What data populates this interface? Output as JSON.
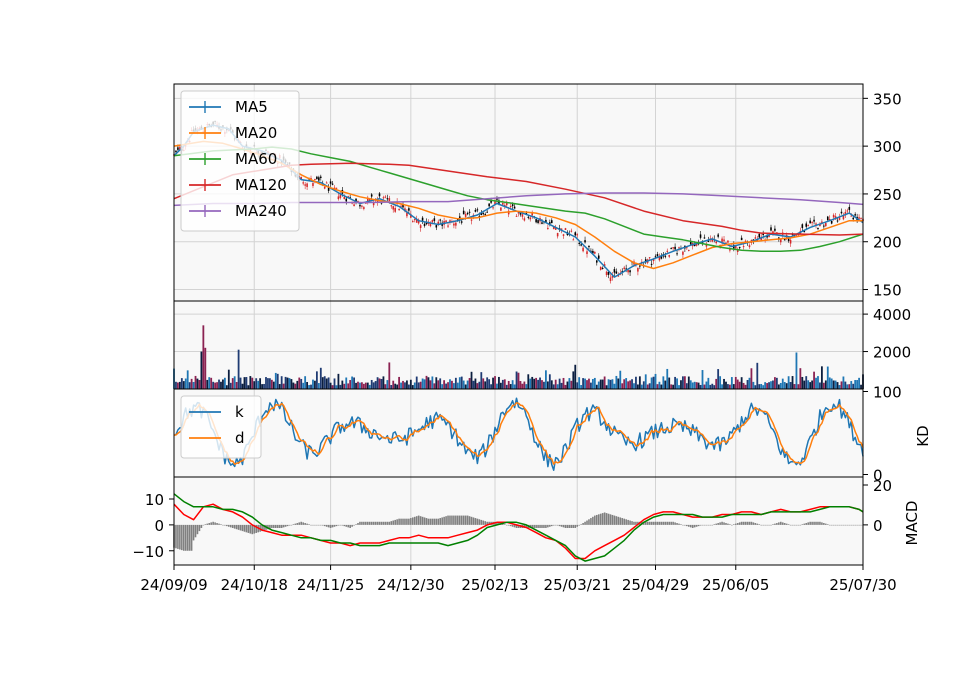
{
  "chart_data": [
    {
      "panel": "price",
      "type": "candlestick",
      "ylim": [
        138,
        365
      ],
      "yticks": [
        150,
        200,
        250,
        300,
        350
      ],
      "grid": true,
      "legend_position": "top-left",
      "series": [
        {
          "name": "MA5",
          "color": "#1f77b4",
          "x": [
            0,
            5,
            10,
            20,
            28,
            35,
            45,
            55,
            65,
            75,
            85,
            95,
            105,
            115,
            125,
            135,
            145,
            155,
            165,
            175,
            185,
            195,
            205,
            215,
            225,
            235,
            245,
            255,
            265,
            275,
            285,
            295,
            305,
            315,
            325,
            335,
            345,
            352
          ],
          "y": [
            290,
            300,
            315,
            322,
            318,
            300,
            295,
            285,
            265,
            262,
            250,
            240,
            245,
            237,
            222,
            218,
            222,
            228,
            240,
            232,
            225,
            215,
            205,
            185,
            163,
            175,
            182,
            190,
            197,
            203,
            195,
            200,
            208,
            205,
            215,
            222,
            230,
            220
          ]
        },
        {
          "name": "MA20",
          "color": "#ff7f0e",
          "x": [
            0,
            15,
            25,
            35,
            45,
            55,
            65,
            75,
            85,
            95,
            105,
            115,
            125,
            135,
            145,
            155,
            165,
            175,
            185,
            195,
            205,
            215,
            225,
            235,
            245,
            255,
            265,
            275,
            285,
            295,
            305,
            315,
            325,
            335,
            345,
            352
          ],
          "y": [
            300,
            305,
            303,
            297,
            290,
            282,
            270,
            260,
            253,
            247,
            243,
            240,
            235,
            228,
            224,
            225,
            230,
            232,
            230,
            225,
            218,
            205,
            190,
            178,
            172,
            178,
            186,
            194,
            198,
            200,
            202,
            204,
            208,
            215,
            222,
            222
          ]
        },
        {
          "name": "MA60",
          "color": "#2ca02c",
          "x": [
            0,
            20,
            40,
            50,
            60,
            70,
            80,
            90,
            100,
            110,
            120,
            130,
            140,
            150,
            160,
            170,
            180,
            190,
            200,
            210,
            220,
            230,
            240,
            250,
            260,
            270,
            280,
            290,
            300,
            310,
            320,
            330,
            340,
            352
          ],
          "y": [
            290,
            295,
            297,
            299,
            297,
            292,
            288,
            284,
            278,
            272,
            266,
            260,
            254,
            248,
            244,
            241,
            238,
            235,
            232,
            230,
            224,
            216,
            208,
            205,
            202,
            198,
            194,
            191,
            190,
            190,
            191,
            195,
            200,
            208
          ]
        },
        {
          "name": "MA120",
          "color": "#d62728",
          "x": [
            0,
            30,
            45,
            60,
            70,
            90,
            110,
            120,
            140,
            160,
            180,
            200,
            220,
            240,
            260,
            280,
            290,
            300,
            320,
            340,
            352
          ],
          "y": [
            245,
            270,
            275,
            280,
            281,
            282,
            281,
            280,
            274,
            268,
            263,
            255,
            246,
            232,
            222,
            216,
            212,
            209,
            208,
            207,
            208
          ]
        },
        {
          "name": "MA240",
          "color": "#9467bd",
          "x": [
            0,
            20,
            40,
            60,
            80,
            100,
            120,
            140,
            160,
            180,
            200,
            220,
            240,
            260,
            280,
            300,
            320,
            340,
            352
          ],
          "y": [
            238,
            240,
            240,
            241,
            241,
            241,
            242,
            242,
            245,
            248,
            250,
            251,
            251,
            250,
            248,
            246,
            244,
            241,
            239
          ]
        }
      ]
    },
    {
      "panel": "volume",
      "type": "bar",
      "ylim": [
        0,
        4700
      ],
      "yticks": [
        2000,
        4000
      ],
      "tick_labels": [
        "2000",
        "4000"
      ],
      "grid": true,
      "spikes": [
        {
          "x": 14,
          "value": 2000
        },
        {
          "x": 15,
          "value": 3400
        },
        {
          "x": 16,
          "value": 2200
        },
        {
          "x": 33,
          "value": 2100
        },
        {
          "x": 157,
          "value": 900
        },
        {
          "x": 318,
          "value": 1950
        },
        {
          "x": 334,
          "value": 1200
        }
      ]
    },
    {
      "panel": "kd",
      "type": "line",
      "ylabel": "KD",
      "ylim": [
        -3,
        103
      ],
      "yticks": [
        0,
        100
      ],
      "legend_position": "top-left",
      "series": [
        {
          "name": "k",
          "color": "#1f77b4"
        },
        {
          "name": "d",
          "color": "#ff7f0e"
        }
      ]
    },
    {
      "panel": "macd",
      "type": "line",
      "ylabel": "MACD",
      "ylim": [
        -15.5,
        18.5
      ],
      "yticks_left": [
        -10,
        0,
        10
      ],
      "yticks_right": [
        0,
        20
      ],
      "series": [
        {
          "color": "#ff0000",
          "x": [
            0,
            5,
            10,
            15,
            20,
            25,
            30,
            35,
            40,
            45,
            50,
            55,
            60,
            65,
            70,
            75,
            80,
            85,
            90,
            95,
            100,
            105,
            110,
            115,
            120,
            125,
            130,
            135,
            140,
            145,
            150,
            155,
            160,
            165,
            170,
            175,
            180,
            185,
            190,
            195,
            200,
            205,
            210,
            215,
            220,
            225,
            230,
            235,
            240,
            245,
            250,
            255,
            260,
            265,
            270,
            275,
            280,
            285,
            290,
            295,
            300,
            305,
            310,
            315,
            320,
            325,
            330,
            335,
            340,
            345,
            350,
            352
          ],
          "y": [
            8,
            4,
            2,
            7,
            8,
            6,
            5,
            3,
            0,
            -2,
            -3,
            -4,
            -4,
            -4,
            -5,
            -6,
            -7,
            -7,
            -8,
            -7,
            -7,
            -7,
            -6,
            -5,
            -5,
            -4,
            -5,
            -5,
            -5,
            -4,
            -3,
            -2,
            0,
            1,
            1,
            0,
            -1,
            -3,
            -5,
            -6,
            -9,
            -13,
            -13,
            -10,
            -8,
            -6,
            -4,
            -1,
            2,
            4,
            5,
            5,
            4,
            3,
            3,
            3,
            4,
            4,
            5,
            5,
            4,
            5,
            6,
            5,
            5,
            6,
            7,
            7,
            7,
            7,
            6,
            5
          ]
        },
        {
          "color": "#008000",
          "x": [
            0,
            5,
            10,
            15,
            20,
            25,
            30,
            35,
            40,
            45,
            50,
            55,
            60,
            65,
            70,
            75,
            80,
            85,
            90,
            95,
            100,
            105,
            110,
            115,
            120,
            125,
            130,
            135,
            140,
            145,
            150,
            155,
            160,
            165,
            170,
            175,
            180,
            185,
            190,
            195,
            200,
            205,
            210,
            215,
            220,
            225,
            230,
            235,
            240,
            245,
            250,
            255,
            260,
            265,
            270,
            275,
            280,
            285,
            290,
            295,
            300,
            305,
            310,
            315,
            320,
            325,
            330,
            335,
            340,
            345,
            350,
            352
          ],
          "y": [
            12,
            9,
            7,
            7,
            7,
            6,
            6,
            5,
            3,
            0,
            -2,
            -3,
            -4,
            -5,
            -5,
            -6,
            -6,
            -7,
            -7,
            -8,
            -8,
            -8,
            -7,
            -7,
            -7,
            -7,
            -7,
            -7,
            -8,
            -7,
            -6,
            -4,
            -1,
            0,
            1,
            1,
            0,
            -2,
            -4,
            -6,
            -8,
            -12,
            -14,
            -13,
            -12,
            -9,
            -6,
            -2,
            1,
            3,
            4,
            4,
            4,
            4,
            3,
            3,
            3,
            4,
            4,
            4,
            4,
            5,
            5,
            5,
            5,
            5,
            6,
            7,
            7,
            7,
            6,
            5
          ]
        }
      ]
    }
  ],
  "x_axis": {
    "range": [
      0,
      352
    ],
    "ticks": [
      {
        "x": 0,
        "label": "24/09/09"
      },
      {
        "x": 41,
        "label": "24/10/18"
      },
      {
        "x": 80,
        "label": "24/11/25"
      },
      {
        "x": 121,
        "label": "24/12/30"
      },
      {
        "x": 164,
        "label": "25/02/13"
      },
      {
        "x": 206,
        "label": "25/03/21"
      },
      {
        "x": 246,
        "label": "25/04/29"
      },
      {
        "x": 287,
        "label": "25/06/05"
      },
      {
        "x": 352,
        "label": "25/07/30"
      }
    ]
  }
}
